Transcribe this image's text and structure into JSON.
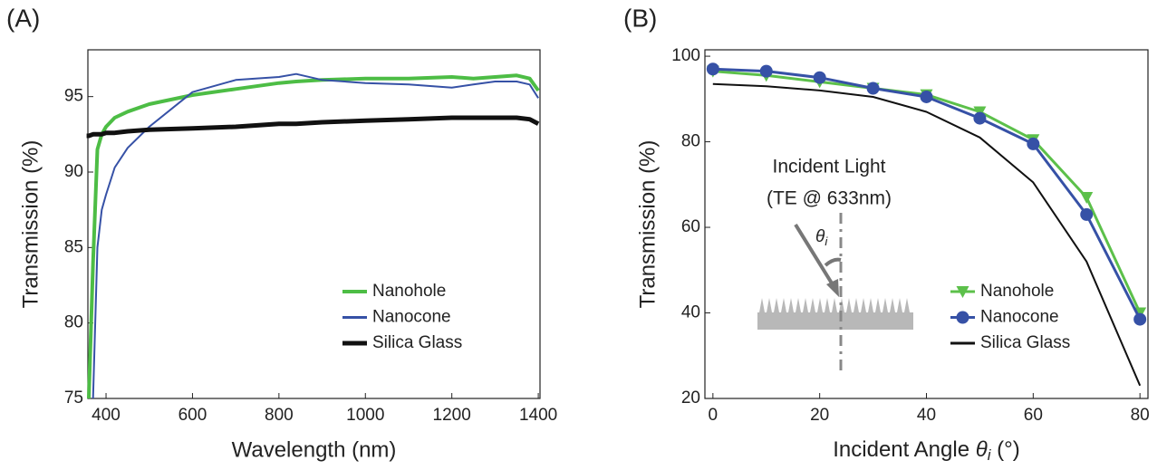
{
  "chart_data": [
    {
      "type": "line",
      "label": "(A)",
      "xlabel": "Wavelength (nm)",
      "ylabel": "Transmission (%)",
      "x": [
        355,
        360,
        370,
        380,
        390,
        400,
        420,
        450,
        500,
        600,
        700,
        800,
        840,
        900,
        1000,
        1100,
        1200,
        1250,
        1300,
        1350,
        1380,
        1400
      ],
      "series": [
        {
          "name": "Nanohole",
          "color": "#4dbd45",
          "width": 4,
          "marker": null,
          "values": [
            null,
            75,
            84,
            91.5,
            92.5,
            93,
            93.6,
            94,
            94.5,
            95.1,
            95.5,
            95.9,
            96,
            96.1,
            96.2,
            96.2,
            96.3,
            96.2,
            96.3,
            96.4,
            96.2,
            95.4
          ]
        },
        {
          "name": "Nanocone",
          "color": "#3651a6",
          "width": 2,
          "marker": null,
          "values": [
            null,
            null,
            75,
            85,
            87.5,
            88.5,
            90.3,
            91.6,
            93,
            95.3,
            96.1,
            96.3,
            96.5,
            96.1,
            95.9,
            95.8,
            95.6,
            95.8,
            96,
            96,
            95.8,
            94.9
          ]
        },
        {
          "name": "Silica Glass",
          "color": "#111111",
          "width": 5,
          "marker": null,
          "values": [
            92.4,
            92.4,
            92.5,
            92.5,
            92.5,
            92.6,
            92.6,
            92.7,
            92.8,
            92.9,
            93,
            93.2,
            93.2,
            93.3,
            93.4,
            93.5,
            93.6,
            93.6,
            93.6,
            93.6,
            93.5,
            93.2
          ]
        }
      ],
      "xlim": [
        358,
        1404
      ],
      "xticks": [
        400,
        600,
        800,
        1000,
        1200,
        1400
      ],
      "ylim": [
        75,
        98.1
      ],
      "yticks": [
        75,
        80,
        85,
        90,
        95
      ],
      "legend": "lower right"
    },
    {
      "type": "line",
      "label": "(B)",
      "xlabel": [
        "Incident Angle ",
        "θ",
        "i",
        " (°)"
      ],
      "ylabel": "Transmission (%)",
      "annotations": [
        "Incident Light",
        "(TE @ 633nm)"
      ],
      "diagram_label": [
        "θ",
        "i"
      ],
      "x": [
        0,
        10,
        20,
        30,
        40,
        50,
        60,
        70,
        80
      ],
      "series": [
        {
          "name": "Nanohole",
          "color": "#5cc04a",
          "width": 3,
          "marker": "v",
          "values": [
            96.5,
            95.5,
            94,
            92.5,
            91,
            87,
            80.5,
            67,
            40
          ]
        },
        {
          "name": "Nanocone",
          "color": "#3651a6",
          "width": 3,
          "marker": "o",
          "values": [
            97,
            96.5,
            95,
            92.5,
            90.5,
            85.5,
            79.5,
            63,
            38.5
          ]
        },
        {
          "name": "Silica Glass",
          "color": "#111111",
          "width": 2,
          "marker": null,
          "values": [
            93.5,
            93,
            92,
            90.5,
            87,
            81,
            70.5,
            52,
            23
          ]
        }
      ],
      "xlim": [
        -1.5,
        81.5
      ],
      "xticks": [
        0,
        20,
        40,
        60,
        80
      ],
      "ylim": [
        20,
        101.5
      ],
      "yticks": [
        20,
        40,
        60,
        80,
        100
      ],
      "legend": "lower right"
    }
  ]
}
